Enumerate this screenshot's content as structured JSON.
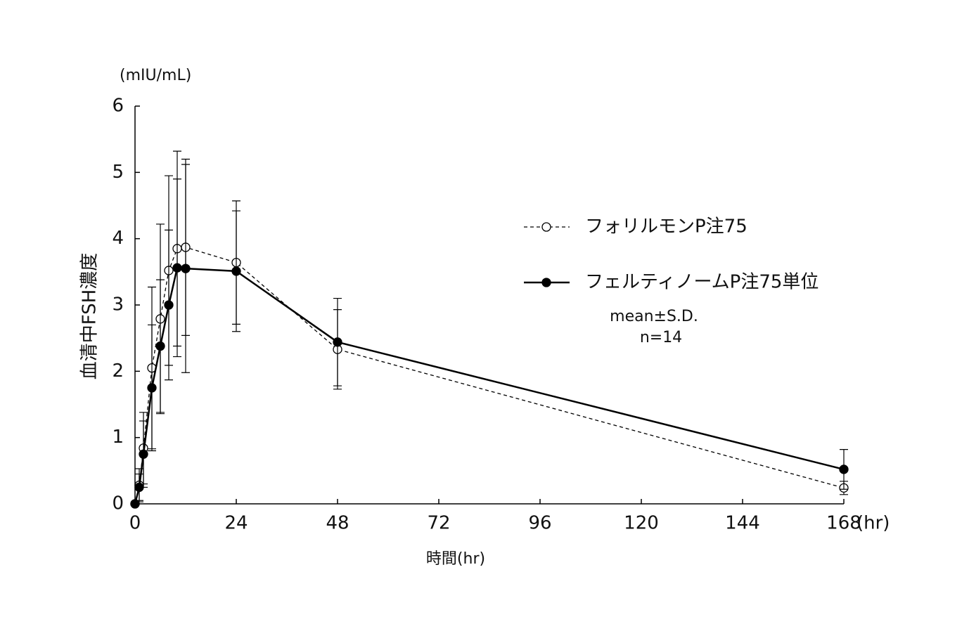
{
  "chart_data": {
    "type": "line",
    "unit_label": "(mIU/mL)",
    "y_label": "血清中FSH濃度",
    "x_label": "時間(hr)",
    "x_unit": "(hr)",
    "annotations": [
      "mean±S.D.",
      "n=14"
    ],
    "xlim": [
      0,
      168
    ],
    "xticks": [
      0,
      24,
      48,
      72,
      96,
      120,
      144,
      168
    ],
    "ylim": [
      0,
      6
    ],
    "yticks": [
      0,
      1,
      2,
      3,
      4,
      5,
      6
    ],
    "series": [
      {
        "name": "フォリルモンP注75",
        "color": "#000000",
        "line_style": "dashed",
        "marker": "open",
        "x": [
          0,
          1,
          2,
          4,
          6,
          8,
          10,
          12,
          24,
          48,
          168
        ],
        "values": [
          0,
          0.28,
          0.84,
          2.05,
          2.79,
          3.52,
          3.85,
          3.87,
          3.64,
          2.33,
          0.24
        ],
        "errors": [
          0,
          0.25,
          0.54,
          1.22,
          1.43,
          1.43,
          1.47,
          1.33,
          0.93,
          0.6,
          0.1
        ]
      },
      {
        "name": "フェルティノームP注75単位",
        "color": "#000000",
        "line_style": "solid",
        "marker": "filled",
        "x": [
          0,
          1,
          2,
          4,
          6,
          8,
          10,
          12,
          24,
          48,
          168
        ],
        "values": [
          0,
          0.25,
          0.75,
          1.75,
          2.38,
          3.0,
          3.56,
          3.55,
          3.51,
          2.44,
          0.52
        ],
        "errors": [
          0,
          0.2,
          0.5,
          0.95,
          1.0,
          1.13,
          1.34,
          1.57,
          0.91,
          0.66,
          0.3
        ]
      }
    ]
  }
}
